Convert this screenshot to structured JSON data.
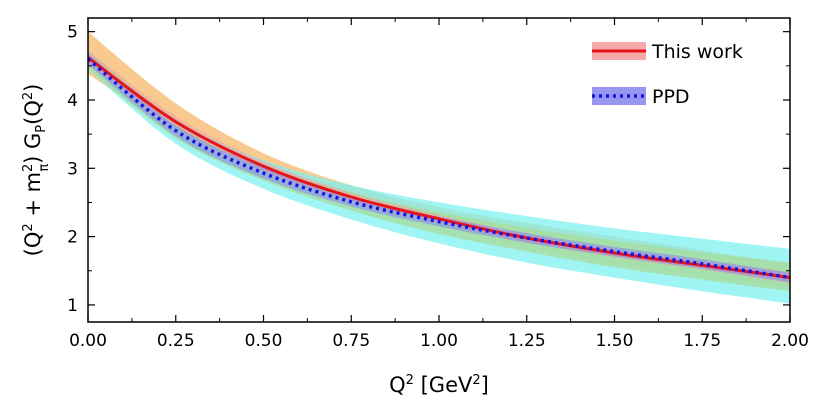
{
  "chart_data": {
    "type": "line",
    "xlabel": "Q^2 [GeV^2]",
    "ylabel": "(Q^2 + m_π^2) G_P(Q^2)",
    "xlim": [
      0.0,
      2.0
    ],
    "ylim": [
      0.75,
      5.2
    ],
    "x_ticks": [
      "0.00",
      "0.25",
      "0.50",
      "0.75",
      "1.00",
      "1.25",
      "1.50",
      "1.75",
      "2.00"
    ],
    "y_ticks": [
      "1",
      "2",
      "3",
      "4",
      "5"
    ],
    "grid": false,
    "legend_position": "top-right",
    "x": [
      0.0,
      0.25,
      0.5,
      0.75,
      1.0,
      1.25,
      1.5,
      1.75,
      2.0
    ],
    "series": [
      {
        "name": "This work",
        "style": "solid",
        "color": "#e8141c",
        "band_color": "#f4a0a0",
        "values": [
          4.62,
          3.68,
          3.03,
          2.58,
          2.26,
          1.98,
          1.76,
          1.58,
          1.4
        ],
        "lower": [
          4.52,
          3.6,
          2.96,
          2.52,
          2.2,
          1.92,
          1.7,
          1.52,
          1.32
        ],
        "upper": [
          4.72,
          3.76,
          3.1,
          2.64,
          2.32,
          2.04,
          1.82,
          1.64,
          1.48
        ]
      },
      {
        "name": "PPD",
        "style": "dotted",
        "color": "#1414e6",
        "band_color": "#8c8cf0",
        "values": [
          4.6,
          3.55,
          2.93,
          2.51,
          2.22,
          1.98,
          1.78,
          1.6,
          1.4
        ],
        "lower": [
          4.52,
          3.47,
          2.85,
          2.44,
          2.15,
          1.91,
          1.71,
          1.53,
          1.33
        ],
        "upper": [
          4.68,
          3.63,
          3.01,
          2.58,
          2.29,
          2.05,
          1.85,
          1.67,
          1.47
        ]
      }
    ],
    "extra_bands": [
      {
        "color": "#f5b86a",
        "lower": [
          4.38,
          3.55,
          2.95,
          2.5,
          2.15,
          1.85,
          1.6,
          1.42,
          1.25
        ],
        "upper": [
          5.0,
          3.95,
          3.22,
          2.75,
          2.43,
          2.2,
          2.0,
          1.8,
          1.6
        ]
      },
      {
        "color": "#7ff0f0",
        "lower": [
          4.45,
          3.36,
          2.7,
          2.25,
          1.9,
          1.62,
          1.4,
          1.2,
          1.02
        ],
        "upper": [
          4.72,
          3.72,
          3.12,
          2.75,
          2.5,
          2.3,
          2.12,
          1.97,
          1.82
        ]
      },
      {
        "color": "#a8dc9a",
        "lower": [
          4.46,
          3.44,
          2.82,
          2.38,
          2.04,
          1.78,
          1.55,
          1.37,
          1.2
        ],
        "upper": [
          4.72,
          3.7,
          3.06,
          2.65,
          2.36,
          2.13,
          1.94,
          1.77,
          1.62
        ]
      }
    ]
  }
}
